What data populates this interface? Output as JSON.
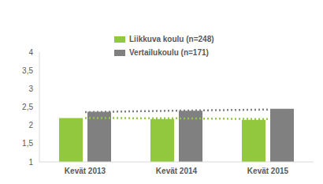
{
  "chart_data": {
    "type": "bar",
    "categories": [
      "Kevät 2013",
      "Kevät 2014",
      "Kevät 2015"
    ],
    "series": [
      {
        "name": "Liikkuva koulu (n=248)",
        "color": "#92c83e",
        "values": [
          2.2,
          2.17,
          2.15
        ],
        "trend": [
          2.2,
          2.19,
          2.17
        ]
      },
      {
        "name": "Vertailukoulu (n=171)",
        "color": "#808080",
        "values": [
          2.37,
          2.4,
          2.45
        ],
        "trend": [
          2.36,
          2.4,
          2.43
        ]
      }
    ],
    "ylim": [
      1,
      4
    ],
    "yticks": [
      1,
      {
        "value": 1.5,
        "label": "1,5"
      },
      2,
      {
        "value": 2.5,
        "label": "2,5"
      },
      3,
      {
        "value": 3.5,
        "label": "3,5"
      },
      4
    ],
    "grid": false,
    "legend": "top"
  }
}
